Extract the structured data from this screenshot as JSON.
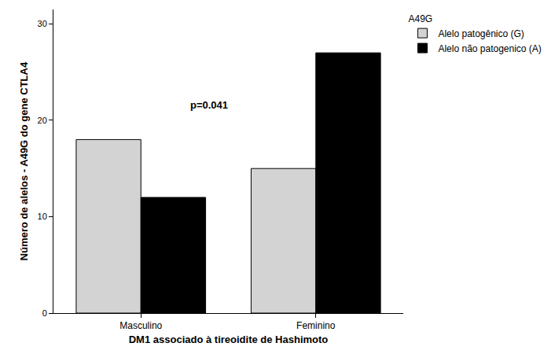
{
  "chart_data": {
    "type": "bar",
    "x_label": "DM1 associado à tireoidite de Hashimoto",
    "y_label": "Número de alelos - A49G do gene CTLA4",
    "legend_title": "A49G",
    "annotation": "p=0.041",
    "categories": [
      "Masculino",
      "Feminino"
    ],
    "series": [
      {
        "name": "Alelo patogênico (G)",
        "color": "#d3d3d3",
        "values": [
          18,
          15
        ]
      },
      {
        "name": "Alelo não patogenico (A)",
        "color": "#000000",
        "values": [
          12,
          27
        ]
      }
    ],
    "ylim": [
      0,
      31.5
    ],
    "yticks": [
      0,
      10,
      20,
      30
    ],
    "grid": false,
    "legend": "top-right"
  }
}
